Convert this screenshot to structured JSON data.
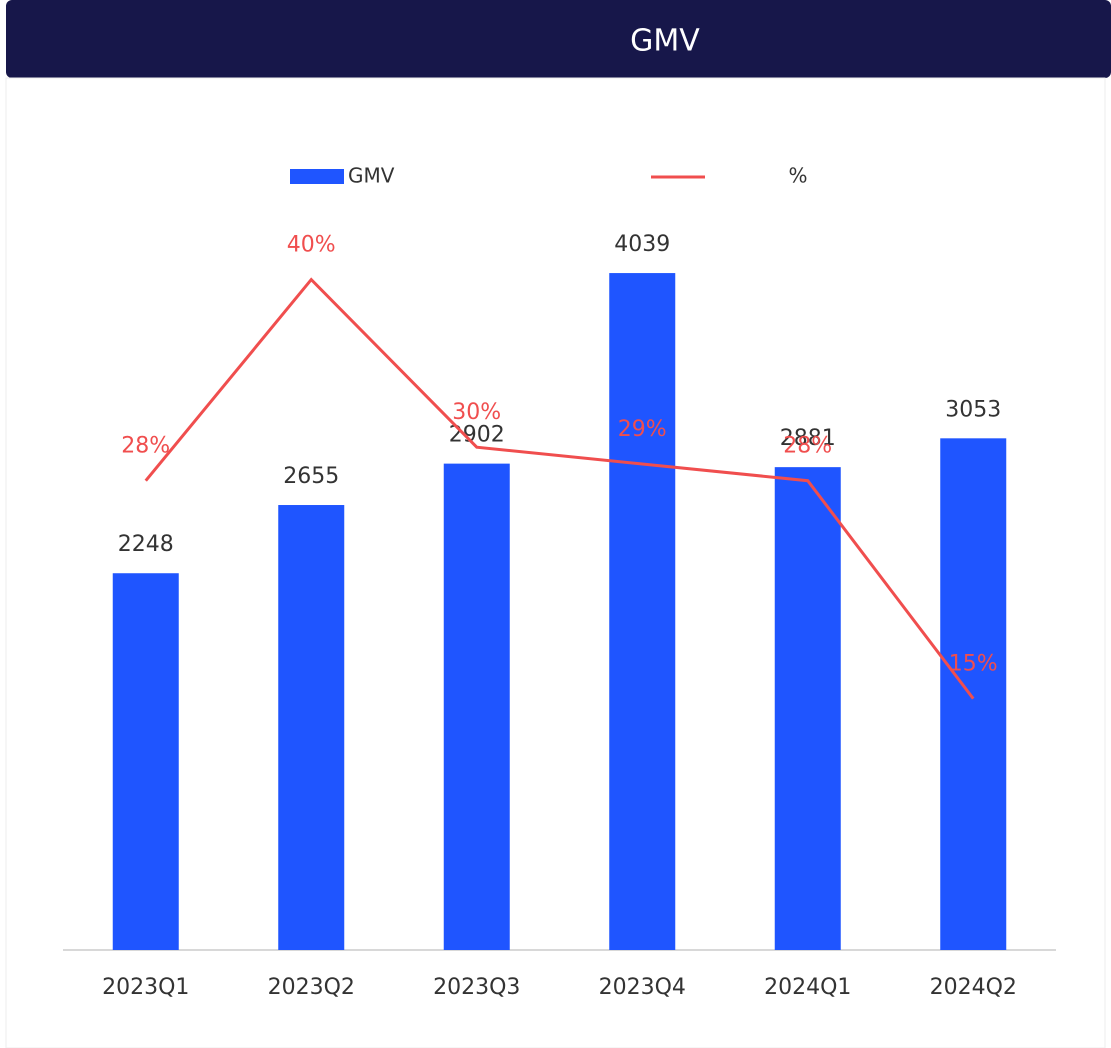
{
  "chart_data": {
    "type": "bar-line",
    "title": "GMV",
    "categories": [
      "2023Q1",
      "2023Q2",
      "2023Q3",
      "2023Q4",
      "2024Q1",
      "2024Q2"
    ],
    "series": [
      {
        "name": "GMV",
        "type": "bar",
        "color": "#1f55ff",
        "values": [
          2248,
          2655,
          2902,
          4039,
          2881,
          3053
        ]
      },
      {
        "name": "%",
        "type": "line",
        "axis": "y2",
        "color": "#f04e4e",
        "values": [
          28,
          40,
          30,
          29,
          28,
          15
        ],
        "value_labels": [
          "28%",
          "40%",
          "30%",
          "29%",
          "28%",
          "15%"
        ]
      }
    ],
    "ylim": [
      0,
      5000
    ],
    "y2lim": [
      0,
      50
    ],
    "header_color": "#17174a"
  }
}
